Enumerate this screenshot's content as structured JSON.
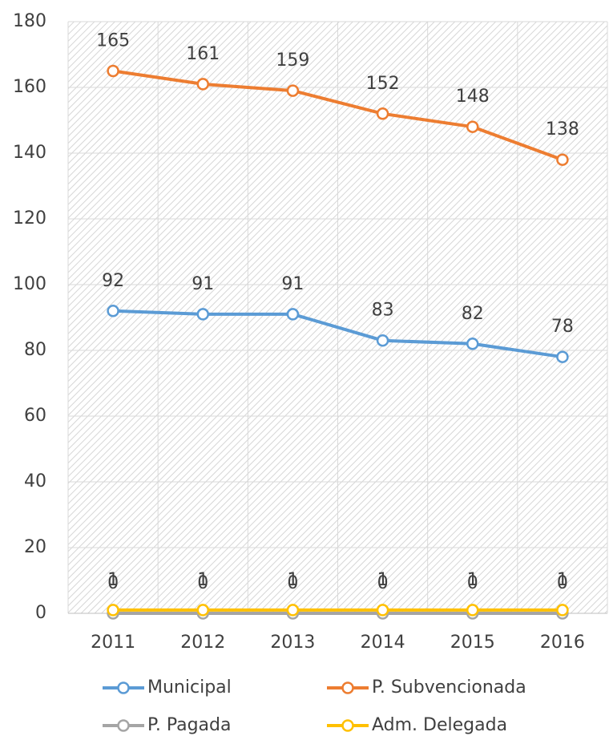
{
  "chart_data": {
    "type": "line",
    "categories": [
      "2011",
      "2012",
      "2013",
      "2014",
      "2015",
      "2016"
    ],
    "series": [
      {
        "name": "Municipal",
        "color": "#5b9bd5",
        "values": [
          92,
          91,
          91,
          83,
          82,
          78
        ]
      },
      {
        "name": "P. Subvencionada",
        "color": "#ed7d31",
        "values": [
          165,
          161,
          159,
          152,
          148,
          138
        ]
      },
      {
        "name": "P. Pagada",
        "color": "#a5a5a5",
        "values": [
          0,
          0,
          0,
          0,
          0,
          0
        ]
      },
      {
        "name": "Adm. Delegada",
        "color": "#ffc000",
        "values": [
          1,
          1,
          1,
          1,
          1,
          1
        ]
      }
    ],
    "ylim": [
      0,
      180
    ],
    "yticks": [
      0,
      20,
      40,
      60,
      80,
      100,
      120,
      140,
      160,
      180
    ],
    "grid": true,
    "legend": "bottom"
  }
}
